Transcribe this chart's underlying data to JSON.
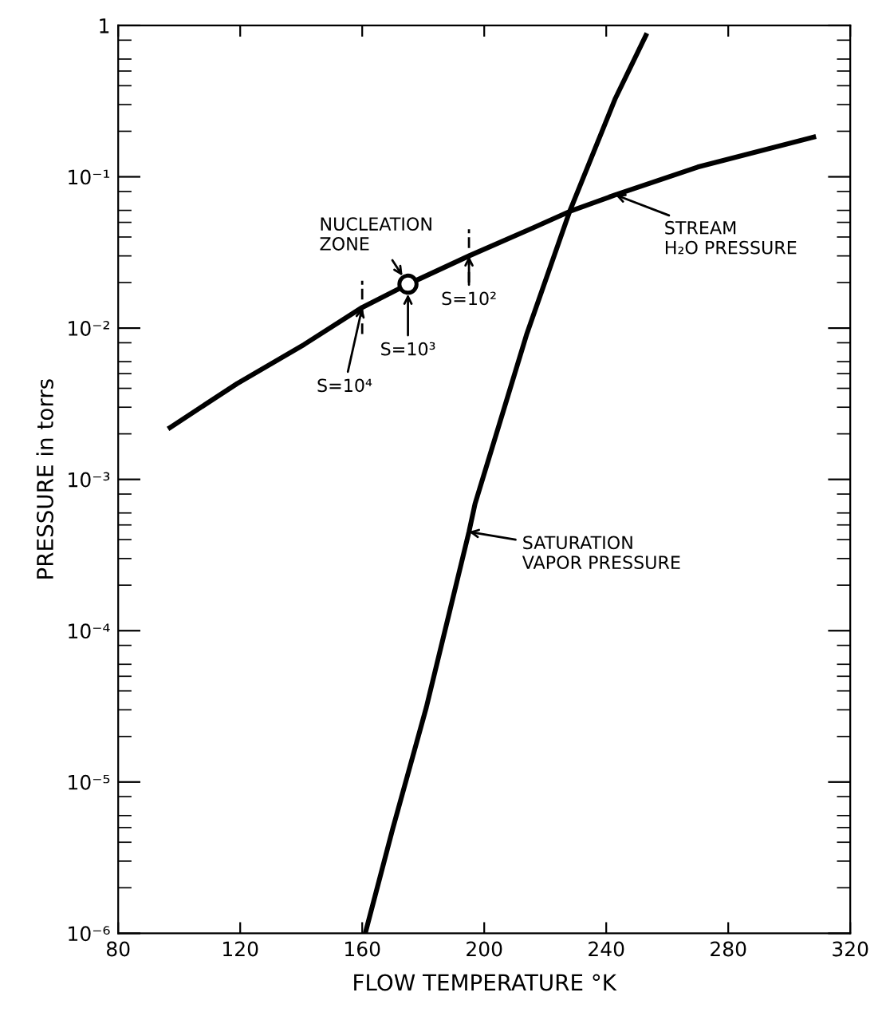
{
  "chart_data": {
    "type": "line",
    "xlabel": "FLOW TEMPERATURE °K",
    "ylabel": "PRESSURE in torrs",
    "log": "y",
    "xlim": [
      80,
      320
    ],
    "ylim": [
      1e-06,
      1
    ],
    "xticks": [
      80,
      120,
      160,
      200,
      240,
      280,
      320
    ],
    "yticks": [
      {
        "value": 1e-06,
        "label": "10⁻⁶"
      },
      {
        "value": 1e-05,
        "label": "10⁻⁵"
      },
      {
        "value": 0.0001,
        "label": "10⁻⁴"
      },
      {
        "value": 0.001,
        "label": "10⁻³"
      },
      {
        "value": 0.01,
        "label": "10⁻²"
      },
      {
        "value": 0.1,
        "label": "10⁻¹"
      },
      {
        "value": 1,
        "label": "1"
      }
    ],
    "grid": false,
    "legend": false,
    "marker": "none",
    "line_style": "solid",
    "series": [
      {
        "color": "#000000",
        "x": [
          97,
          119,
          141,
          160,
          175,
          195,
          216,
          228,
          243,
          270,
          308
        ],
        "values": [
          0.0022,
          0.0043,
          0.0078,
          0.0137,
          0.0195,
          0.03,
          0.046,
          0.059,
          0.076,
          0.116,
          0.183
        ]
      },
      {
        "color": "#000000",
        "x": [
          161,
          170,
          181,
          195,
          197,
          214,
          228,
          243,
          253
        ],
        "values": [
          1e-06,
          4.9e-06,
          3.1e-05,
          0.00045,
          0.00069,
          0.0092,
          0.059,
          0.33,
          0.86
        ]
      },
      {
        "type": "scatter",
        "marker": "circle",
        "color": "#000000",
        "x": [
          175
        ],
        "values": [
          0.0195
        ]
      }
    ],
    "annotations": [
      {
        "text": "NUCLEATION\nZONE",
        "x": 175,
        "y": 0.0195
      },
      {
        "text": "S=10⁴",
        "x": 160,
        "y": 0.0137
      },
      {
        "text": "S=10³",
        "x": 175,
        "y": 0.0195
      },
      {
        "text": "S=10²",
        "x": 195,
        "y": 0.03
      },
      {
        "text": "STREAM\nH₂O PRESSURE",
        "x": 243,
        "y": 0.076
      },
      {
        "text": "SATURATION\nVAPOR PRESSURE",
        "x": 195,
        "y": 0.00045
      }
    ]
  }
}
